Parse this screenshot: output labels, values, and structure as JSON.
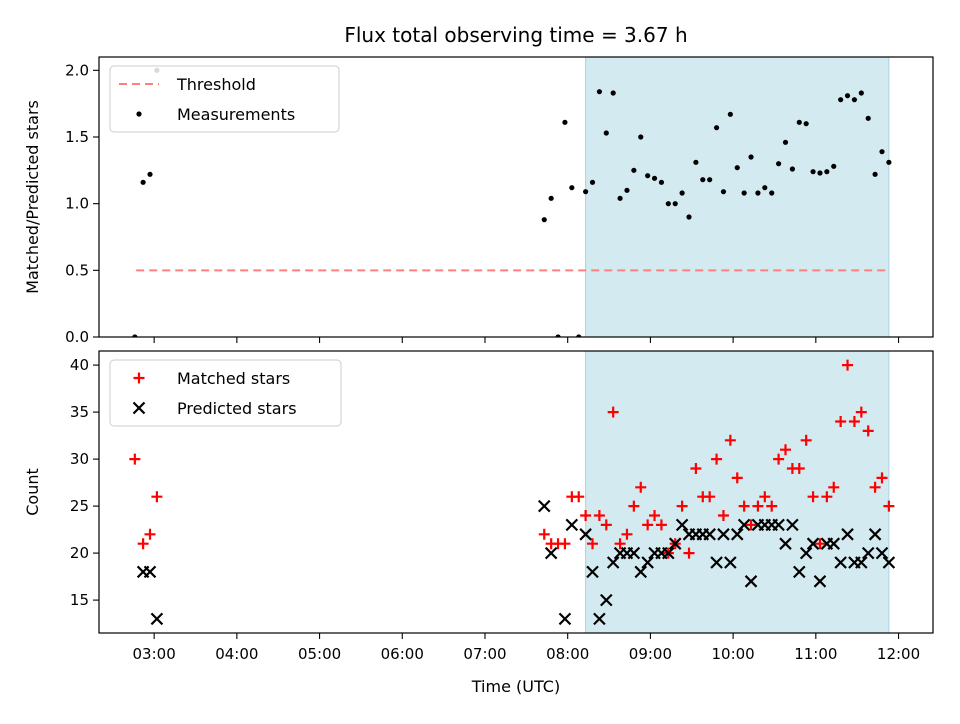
{
  "chart_data": {
    "title": "Flux total observing time = 3.67 h",
    "xlabel": "Time (UTC)",
    "x_ticks": [
      "03:00",
      "04:00",
      "05:00",
      "06:00",
      "07:00",
      "08:00",
      "09:00",
      "10:00",
      "11:00",
      "12:00"
    ],
    "xlim": [
      "02:20",
      "12:25"
    ],
    "shaded_interval": [
      "08:13",
      "11:53"
    ],
    "shade_color": "#d4eaf1",
    "panels": [
      {
        "type": "scatter",
        "ylabel": "Matched/Predicted stars",
        "ylim": [
          0,
          2.1
        ],
        "y_ticks": [
          "0.0",
          "0.5",
          "1.0",
          "1.5",
          "2.0"
        ],
        "legend_position": "upper-left",
        "series": [
          {
            "name": "Threshold",
            "kind": "dashed-line",
            "color": "#ff7f7f",
            "y": 0.5,
            "x_range": [
              "02:47",
              "11:53"
            ]
          },
          {
            "name": "Measurements",
            "kind": "dot",
            "color": "#000000",
            "points": [
              [
                "02:46",
                0.0
              ],
              [
                "02:52",
                1.16
              ],
              [
                "02:57",
                1.22
              ],
              [
                "03:02",
                2.0
              ],
              [
                "07:43",
                0.88
              ],
              [
                "07:48",
                1.04
              ],
              [
                "07:53",
                0.0
              ],
              [
                "07:58",
                1.61
              ],
              [
                "08:03",
                1.12
              ],
              [
                "08:08",
                0.0
              ],
              [
                "08:13",
                1.09
              ],
              [
                "08:18",
                1.16
              ],
              [
                "08:23",
                1.84
              ],
              [
                "08:28",
                1.53
              ],
              [
                "08:33",
                1.83
              ],
              [
                "08:38",
                1.04
              ],
              [
                "08:43",
                1.1
              ],
              [
                "08:48",
                1.25
              ],
              [
                "08:53",
                1.5
              ],
              [
                "08:58",
                1.21
              ],
              [
                "09:03",
                1.19
              ],
              [
                "09:08",
                1.16
              ],
              [
                "09:13",
                1.0
              ],
              [
                "09:18",
                1.0
              ],
              [
                "09:23",
                1.08
              ],
              [
                "09:28",
                0.9
              ],
              [
                "09:33",
                1.31
              ],
              [
                "09:38",
                1.18
              ],
              [
                "09:43",
                1.18
              ],
              [
                "09:48",
                1.57
              ],
              [
                "09:53",
                1.09
              ],
              [
                "09:58",
                1.67
              ],
              [
                "10:03",
                1.27
              ],
              [
                "10:08",
                1.08
              ],
              [
                "10:13",
                1.35
              ],
              [
                "10:18",
                1.08
              ],
              [
                "10:23",
                1.12
              ],
              [
                "10:28",
                1.08
              ],
              [
                "10:33",
                1.3
              ],
              [
                "10:38",
                1.46
              ],
              [
                "10:43",
                1.26
              ],
              [
                "10:48",
                1.61
              ],
              [
                "10:53",
                1.6
              ],
              [
                "10:58",
                1.24
              ],
              [
                "11:03",
                1.23
              ],
              [
                "11:08",
                1.24
              ],
              [
                "11:13",
                1.28
              ],
              [
                "11:18",
                1.78
              ],
              [
                "11:23",
                1.81
              ],
              [
                "11:28",
                1.78
              ],
              [
                "11:33",
                1.83
              ],
              [
                "11:38",
                1.64
              ],
              [
                "11:43",
                1.22
              ],
              [
                "11:48",
                1.39
              ],
              [
                "11:53",
                1.31
              ]
            ]
          }
        ]
      },
      {
        "type": "scatter",
        "ylabel": "Count",
        "ylim": [
          11.5,
          41.5
        ],
        "y_ticks": [
          "15",
          "20",
          "25",
          "30",
          "35",
          "40"
        ],
        "legend_position": "upper-left",
        "series": [
          {
            "name": "Matched stars",
            "kind": "plus",
            "color": "#ff0000",
            "points": [
              [
                "02:46",
                30
              ],
              [
                "02:52",
                21
              ],
              [
                "02:57",
                22
              ],
              [
                "03:02",
                26
              ],
              [
                "07:43",
                22
              ],
              [
                "07:48",
                21
              ],
              [
                "07:53",
                21
              ],
              [
                "07:58",
                21
              ],
              [
                "08:03",
                26
              ],
              [
                "08:08",
                26
              ],
              [
                "08:13",
                24
              ],
              [
                "08:18",
                21
              ],
              [
                "08:23",
                24
              ],
              [
                "08:28",
                23
              ],
              [
                "08:33",
                35
              ],
              [
                "08:38",
                21
              ],
              [
                "08:43",
                22
              ],
              [
                "08:48",
                25
              ],
              [
                "08:53",
                27
              ],
              [
                "08:58",
                23
              ],
              [
                "09:03",
                24
              ],
              [
                "09:08",
                23
              ],
              [
                "09:13",
                20
              ],
              [
                "09:18",
                21
              ],
              [
                "09:23",
                25
              ],
              [
                "09:28",
                20
              ],
              [
                "09:33",
                29
              ],
              [
                "09:38",
                26
              ],
              [
                "09:43",
                26
              ],
              [
                "09:48",
                30
              ],
              [
                "09:53",
                24
              ],
              [
                "09:58",
                32
              ],
              [
                "10:03",
                28
              ],
              [
                "10:08",
                25
              ],
              [
                "10:13",
                23
              ],
              [
                "10:18",
                25
              ],
              [
                "10:23",
                26
              ],
              [
                "10:28",
                25
              ],
              [
                "10:33",
                30
              ],
              [
                "10:38",
                31
              ],
              [
                "10:43",
                29
              ],
              [
                "10:48",
                29
              ],
              [
                "10:53",
                32
              ],
              [
                "10:58",
                26
              ],
              [
                "11:03",
                21
              ],
              [
                "11:08",
                26
              ],
              [
                "11:13",
                27
              ],
              [
                "11:18",
                34
              ],
              [
                "11:23",
                40
              ],
              [
                "11:28",
                34
              ],
              [
                "11:33",
                35
              ],
              [
                "11:38",
                33
              ],
              [
                "11:43",
                27
              ],
              [
                "11:48",
                28
              ],
              [
                "11:53",
                25
              ]
            ]
          },
          {
            "name": "Predicted stars",
            "kind": "cross",
            "color": "#000000",
            "points": [
              [
                "02:46",
                null
              ],
              [
                "02:52",
                18
              ],
              [
                "02:57",
                18
              ],
              [
                "03:02",
                13
              ],
              [
                "07:43",
                25
              ],
              [
                "07:48",
                20
              ],
              [
                "07:53",
                null
              ],
              [
                "07:58",
                13
              ],
              [
                "08:03",
                23
              ],
              [
                "08:08",
                null
              ],
              [
                "08:13",
                22
              ],
              [
                "08:18",
                18
              ],
              [
                "08:23",
                13
              ],
              [
                "08:28",
                15
              ],
              [
                "08:33",
                19
              ],
              [
                "08:38",
                20
              ],
              [
                "08:43",
                20
              ],
              [
                "08:48",
                20
              ],
              [
                "08:53",
                18
              ],
              [
                "08:58",
                19
              ],
              [
                "09:03",
                20
              ],
              [
                "09:08",
                20
              ],
              [
                "09:13",
                20
              ],
              [
                "09:18",
                21
              ],
              [
                "09:23",
                23
              ],
              [
                "09:28",
                22
              ],
              [
                "09:33",
                22
              ],
              [
                "09:38",
                22
              ],
              [
                "09:43",
                22
              ],
              [
                "09:48",
                19
              ],
              [
                "09:53",
                22
              ],
              [
                "09:58",
                19
              ],
              [
                "10:03",
                22
              ],
              [
                "10:08",
                23
              ],
              [
                "10:13",
                17
              ],
              [
                "10:18",
                23
              ],
              [
                "10:23",
                23
              ],
              [
                "10:28",
                23
              ],
              [
                "10:33",
                23
              ],
              [
                "10:38",
                21
              ],
              [
                "10:43",
                23
              ],
              [
                "10:48",
                18
              ],
              [
                "10:53",
                20
              ],
              [
                "10:58",
                21
              ],
              [
                "11:03",
                17
              ],
              [
                "11:08",
                21
              ],
              [
                "11:13",
                21
              ],
              [
                "11:18",
                19
              ],
              [
                "11:23",
                22
              ],
              [
                "11:28",
                19
              ],
              [
                "11:33",
                19
              ],
              [
                "11:38",
                20
              ],
              [
                "11:43",
                22
              ],
              [
                "11:48",
                20
              ],
              [
                "11:53",
                19
              ]
            ]
          }
        ]
      }
    ]
  }
}
